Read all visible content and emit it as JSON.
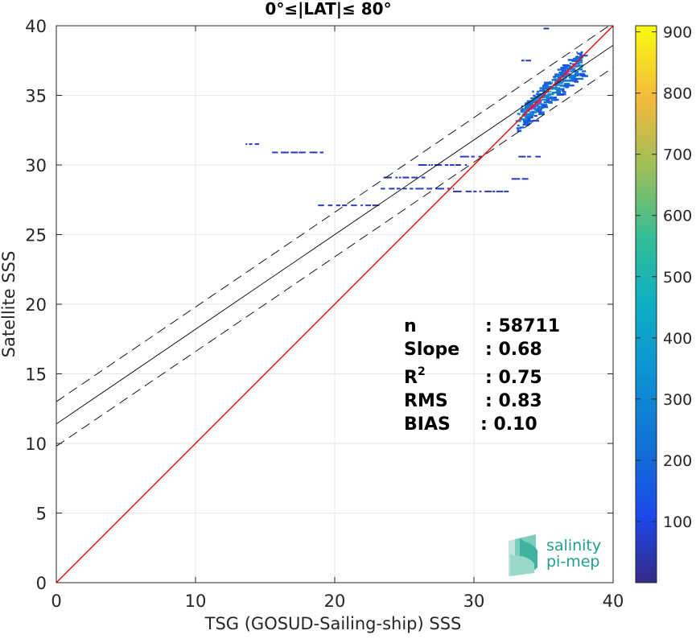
{
  "chart_data": {
    "type": "heatmap",
    "title": "0°≤|LAT|≤ 80°",
    "xlabel": "TSG (GOSUD-Sailing-ship) SSS",
    "ylabel": "Satellite SSS",
    "xlim": [
      0,
      40
    ],
    "ylim": [
      0,
      40
    ],
    "xticks": [
      "0",
      "10",
      "20",
      "30",
      "40"
    ],
    "yticks": [
      "0",
      "5",
      "10",
      "15",
      "20",
      "25",
      "30",
      "35",
      "40"
    ],
    "grid": true,
    "identity_line": {
      "color": "#ff0000",
      "from": [
        0,
        0
      ],
      "to": [
        40,
        40
      ]
    },
    "regression": {
      "slope": 0.68,
      "intercept": 11.4,
      "band": 1.6
    },
    "stats": [
      {
        "label": "n",
        "value": ": 58711"
      },
      {
        "label": "Slope",
        "value": ": 0.68"
      },
      {
        "label": "R",
        "sup": "2",
        "value": ": 0.75"
      },
      {
        "label": "RMS",
        "value": ": 0.83"
      },
      {
        "label": "BIAS",
        "value": ": 0.10"
      }
    ],
    "colorbar": {
      "min": 0,
      "max": 910,
      "ticks": [
        "100",
        "200",
        "300",
        "400",
        "500",
        "600",
        "700",
        "800",
        "900"
      ],
      "colormap": "parula"
    },
    "density_segments": [
      {
        "x0": 13.6,
        "x1": 14.8,
        "y": 31.5,
        "density": 50
      },
      {
        "x0": 15.5,
        "x1": 19.2,
        "y": 30.9,
        "density": 40
      },
      {
        "x0": 18.8,
        "x1": 23.2,
        "y": 27.1,
        "density": 40
      },
      {
        "x0": 23.3,
        "x1": 28.5,
        "y": 28.3,
        "density": 50
      },
      {
        "x0": 23.5,
        "x1": 26.5,
        "y": 29.1,
        "density": 40
      },
      {
        "x0": 26.0,
        "x1": 29.5,
        "y": 30.0,
        "density": 40
      },
      {
        "x0": 28.5,
        "x1": 32.5,
        "y": 28.1,
        "density": 30
      },
      {
        "x0": 29.0,
        "x1": 30.6,
        "y": 30.6,
        "density": 40
      },
      {
        "x0": 32.7,
        "x1": 34.0,
        "y": 29.0,
        "density": 40
      },
      {
        "x0": 33.2,
        "x1": 34.8,
        "y": 30.6,
        "density": 30
      },
      {
        "x0": 33.4,
        "x1": 34.2,
        "y": 37.5,
        "density": 40
      },
      {
        "x0": 35.0,
        "x1": 35.4,
        "y": 39.8,
        "density": 30
      }
    ],
    "cluster": {
      "x_range": [
        33.2,
        37.6
      ],
      "slope": 0.92,
      "center": [
        35.5,
        35.4
      ],
      "rows": 48,
      "row_spread": 1.1
    },
    "colors": {
      "axis": "#262626",
      "grid": "#e6e6e6",
      "regression": "#000000",
      "identity": "#ff0000"
    }
  },
  "logo": {
    "line1": "salinity",
    "line2": "pi-mep",
    "color": "#1fa08e"
  }
}
